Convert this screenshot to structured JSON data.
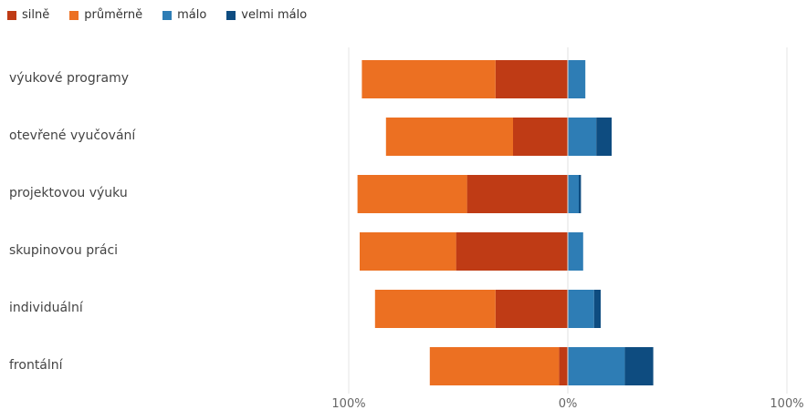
{
  "chart_data": {
    "type": "bar",
    "orientation": "horizontal",
    "stacking": "diverging",
    "legend_position": "top-left",
    "grid": false,
    "categories": [
      "výukové programy",
      "otevřené vyučování",
      "projektovou výuku",
      "skupinovou práci",
      "individuální",
      "frontální"
    ],
    "series": [
      {
        "name": "silně",
        "color": "#BF3B15",
        "side": "negative",
        "values": [
          33,
          25,
          46,
          51,
          33,
          4
        ]
      },
      {
        "name": "průměrně",
        "color": "#EC7022",
        "side": "negative",
        "values": [
          61,
          58,
          50,
          44,
          55,
          59
        ]
      },
      {
        "name": "málo",
        "color": "#2E7DB5",
        "side": "positive",
        "values": [
          8,
          13,
          5,
          7,
          12,
          26
        ]
      },
      {
        "name": "velmi málo",
        "color": "#0E4C80",
        "side": "positive",
        "values": [
          0,
          7,
          1,
          0,
          3,
          13
        ]
      }
    ],
    "x_ticks": [
      "100%",
      "0%",
      "100%"
    ],
    "xlim": [
      -100,
      100
    ]
  }
}
